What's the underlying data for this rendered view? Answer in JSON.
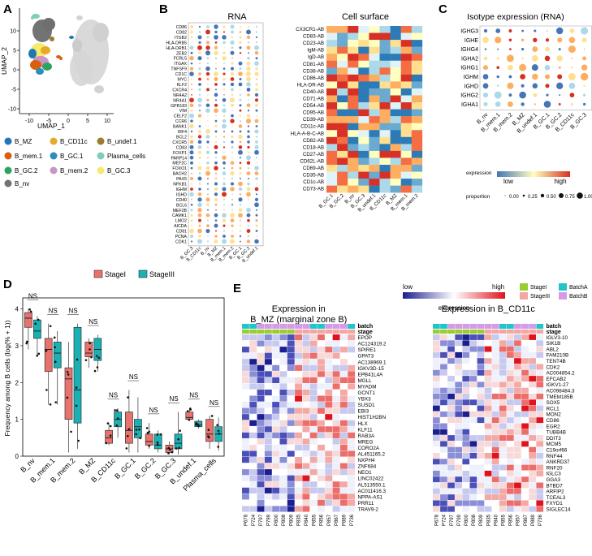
{
  "panel_labels": [
    "A",
    "B",
    "C",
    "D",
    "E"
  ],
  "panelA": {
    "xlabel": "UMAP_1",
    "ylabel": "UMAP_2",
    "xticks": [
      "-10",
      "-5",
      "0",
      "5",
      "10"
    ],
    "yticks": [
      "-10",
      "-5",
      "0",
      "5",
      "10"
    ],
    "legend": [
      {
        "label": "B_MZ",
        "color": "#1f78b4"
      },
      {
        "label": "B_CD11c",
        "color": "#e6a92a"
      },
      {
        "label": "B_undef.1",
        "color": "#9c7a2e"
      },
      {
        "label": "B_mem.1",
        "color": "#d95f0e"
      },
      {
        "label": "B_GC.1",
        "color": "#2b8cbe"
      },
      {
        "label": "Plasma_cells",
        "color": "#7fcdbb"
      },
      {
        "label": "B_GC.2",
        "color": "#2ca25f"
      },
      {
        "label": "B_mem.2",
        "color": "#c994c7"
      },
      {
        "label": "B_GC.3",
        "color": "#f7e96b"
      },
      {
        "label": "B_nv",
        "color": "#737373"
      }
    ]
  },
  "panelB": {
    "rna_title": "RNA",
    "cs_title": "Cell surface",
    "rna_genes": [
      "CD86",
      "CD82",
      "ITGB2",
      "HLA-DRB5",
      "HLA-DRB1",
      "ZEB2",
      "FCRL5",
      "ITGAX",
      "TNFSF9",
      "CD1C",
      "MYC",
      "KLF2",
      "CXCR4",
      "NR4A2",
      "NR4A1",
      "GPR183",
      "VIM",
      "CELF2",
      "CCR6",
      "BANK1",
      "IRF4",
      "BCL2",
      "CXCR5",
      "CD83",
      "FOXP1",
      "PARP14",
      "MEF2C",
      "FOXO1",
      "BACH2",
      "PAX5",
      "NFKB1",
      "IGHM",
      "IGHD",
      "CD40",
      "BCL6",
      "MEF2B",
      "CAMK1",
      "LMO2",
      "AICDA",
      "CD81",
      "PCNA",
      "CDK1"
    ],
    "rna_cells": [
      "B_GC.3",
      "B_CD11c",
      "B_nv",
      "B_MZ",
      "B_mem.1",
      "B_mem.2",
      "B_GC.1",
      "B_GC.2",
      "B_undef.1"
    ],
    "cs_markers": [
      "CX3CR1-AB",
      "CD83-AB",
      "CD23-AB",
      "IgM-AB",
      "IgD-AB",
      "CD81-AB",
      "CD38-AB",
      "CD86-AB",
      "HLA-DR-AB",
      "CD40-AB",
      "CD71-AB",
      "CD54-AB",
      "CD95-AB",
      "CD39-AB",
      "CD11c-AB",
      "HLA-A-B-C-AB",
      "CD82-AB",
      "CD18-AB",
      "CD27-AB",
      "CD62L-AB",
      "CD69-AB",
      "CD35-AB",
      "CD1c-AB",
      "CD73-AB"
    ],
    "cs_cells": [
      "B_GC.1",
      "B_GC.2",
      "B_nv",
      "B_GC.3",
      "B_undef.1",
      "B_CD11c",
      "B_MZ",
      "B_mem.1",
      "B_mem.2"
    ]
  },
  "panelC": {
    "title": "Isotype expression (RNA)",
    "genes": [
      "IGHG3",
      "IGHE",
      "IGHG4",
      "IGHA2",
      "IGHG1",
      "IGHM",
      "IGHD",
      "IGHG2",
      "IGHA1"
    ],
    "cells": [
      "B_nv",
      "B_mem.1",
      "B_mem.2",
      "B_MZ",
      "B_undef.1",
      "B_GC.1",
      "B_GC.2",
      "B_CD11c",
      "B_GC.3"
    ],
    "legend_title": "expression",
    "low": "low",
    "high": "high",
    "proportion_label": "proportion",
    "proportion_values": [
      "0.00",
      "0.25",
      "0.50",
      "0.75",
      "1.00"
    ]
  },
  "panelD": {
    "ylabel": "Frequency among B cells (log(% + 1))",
    "legend": [
      {
        "label": "StageI",
        "color": "#e8726d"
      },
      {
        "label": "StageIII",
        "color": "#19b1b3"
      }
    ],
    "yticks": [
      "0",
      "1",
      "2",
      "3",
      "4"
    ],
    "sig": "NS",
    "chart_data": {
      "type": "box",
      "title": "",
      "ylabel": "Frequency among B cells (log(% + 1))",
      "ylim": [
        0,
        4.3
      ],
      "categories": [
        "B_nv",
        "B_mem.1",
        "B_mem.2",
        "B_MZ",
        "B_CD11c",
        "B_GC.1",
        "B_GC.2",
        "B_GC.3",
        "B_undef.1",
        "Plasma_cells"
      ],
      "series": [
        {
          "name": "StageI",
          "boxes": [
            {
              "min": 2.9,
              "q1": 3.5,
              "median": 3.75,
              "q3": 3.9,
              "max": 4.0
            },
            {
              "min": 1.4,
              "q1": 2.3,
              "median": 2.9,
              "q3": 3.2,
              "max": 3.6
            },
            {
              "min": 0.1,
              "q1": 1.0,
              "median": 2.1,
              "q3": 2.4,
              "max": 3.1
            },
            {
              "min": 2.4,
              "q1": 2.7,
              "median": 2.8,
              "q3": 3.1,
              "max": 3.2
            },
            {
              "min": 0.3,
              "q1": 0.35,
              "median": 0.5,
              "q3": 0.7,
              "max": 0.9
            },
            {
              "min": 0.1,
              "q1": 0.35,
              "median": 0.7,
              "q3": 1.2,
              "max": 1.8
            },
            {
              "min": 0.2,
              "q1": 0.3,
              "median": 0.4,
              "q3": 0.6,
              "max": 0.9
            },
            {
              "min": 0.05,
              "q1": 0.1,
              "median": 0.2,
              "q3": 0.3,
              "max": 0.4
            },
            {
              "min": 0.95,
              "q1": 1.0,
              "median": 1.05,
              "q3": 1.2,
              "max": 1.3
            },
            {
              "min": 0.2,
              "q1": 0.4,
              "median": 0.6,
              "q3": 1.0,
              "max": 1.1
            }
          ]
        },
        {
          "name": "StageIII",
          "boxes": [
            {
              "min": 2.7,
              "q1": 3.2,
              "median": 3.4,
              "q3": 3.7,
              "max": 3.8
            },
            {
              "min": 1.4,
              "q1": 2.4,
              "median": 2.8,
              "q3": 3.1,
              "max": 3.4
            },
            {
              "min": 0.2,
              "q1": 0.9,
              "median": 1.8,
              "q3": 3.5,
              "max": 3.6
            },
            {
              "min": 2.3,
              "q1": 2.6,
              "median": 2.9,
              "q3": 3.2,
              "max": 3.3
            },
            {
              "min": 0.5,
              "q1": 0.8,
              "median": 1.0,
              "q3": 1.2,
              "max": 1.3
            },
            {
              "min": 0.1,
              "q1": 0.5,
              "median": 0.8,
              "q3": 1.0,
              "max": 1.6
            },
            {
              "min": 0.1,
              "q1": 0.2,
              "median": 0.3,
              "q3": 0.6,
              "max": 0.7
            },
            {
              "min": 0.05,
              "q1": 0.2,
              "median": 0.35,
              "q3": 0.6,
              "max": 1.2
            },
            {
              "min": 0.75,
              "q1": 0.8,
              "median": 0.85,
              "q3": 0.95,
              "max": 1.0
            },
            {
              "min": 0.15,
              "q1": 0.4,
              "median": 0.6,
              "q3": 0.8,
              "max": 1.05
            }
          ]
        }
      ]
    }
  },
  "panelE": {
    "legend_low": "low",
    "legend_high": "high",
    "legend_title": "expression",
    "stage_legend": [
      {
        "label": "StageI",
        "color": "#9acd32"
      },
      {
        "label": "StageIII",
        "color": "#f4a6a3"
      }
    ],
    "batch_legend": [
      {
        "label": "BatchA",
        "color": "#20c5c9"
      },
      {
        "label": "BatchB",
        "color": "#d59be8"
      }
    ],
    "batch_label": "batch",
    "stage_label": "stage",
    "heat1": {
      "title_line1": "Expression in",
      "title_line2": "B_MZ (marginal zone B)",
      "genes": [
        "EPOP",
        "AC124319.2",
        "SPIRE1",
        "GPAT3",
        "AC138969.1",
        "IGKV3D-15",
        "EPB41L4A",
        "MGLL",
        "MYADM",
        "GCNT1",
        "YBX3",
        "SUSD1",
        "EBI3",
        "HIST1H2BN",
        "HLX",
        "KLF11",
        "RAB3A",
        "MREG",
        "CORO2A",
        "AL451165.2",
        "NXPH4",
        "ZNF684",
        "NEO1",
        "LINC02422",
        "AL513550.1",
        "AC011416.3",
        "NPPA-AS1",
        "PRR11",
        "TRAV9-2"
      ],
      "samples": [
        "P678",
        "P724",
        "P797",
        "P799",
        "P800",
        "P808",
        "P809",
        "P835",
        "P840",
        "P855",
        "P856",
        "P857",
        "P867",
        "P889",
        "P736"
      ]
    },
    "heat2": {
      "title": "Expression in B_CD11c",
      "genes": [
        "IGLV3-10",
        "SIK1B",
        "ABL2",
        "FAM210B",
        "TENT4B",
        "CDK2",
        "AC004854.2",
        "EFCAB2",
        "IGKV1-27",
        "AC098484.3",
        "TMEM185B",
        "SOX5",
        "RCL1",
        "MON2",
        "CD86",
        "EGR2",
        "TUBB4B",
        "DDIT3",
        "MCM5",
        "C19orf66",
        "RNF44",
        "ANKRD37",
        "RNF20",
        "IGLC3",
        "GGA3",
        "BTBD7",
        "ARFIP2",
        "TCEAL3",
        "FXYD1",
        "SIGLEC14"
      ],
      "samples": [
        "P678",
        "P724",
        "P797",
        "P799",
        "P800",
        "P808",
        "P809",
        "P835",
        "P840",
        "P855",
        "P856",
        "P857",
        "P867",
        "P889",
        "P736"
      ]
    }
  }
}
